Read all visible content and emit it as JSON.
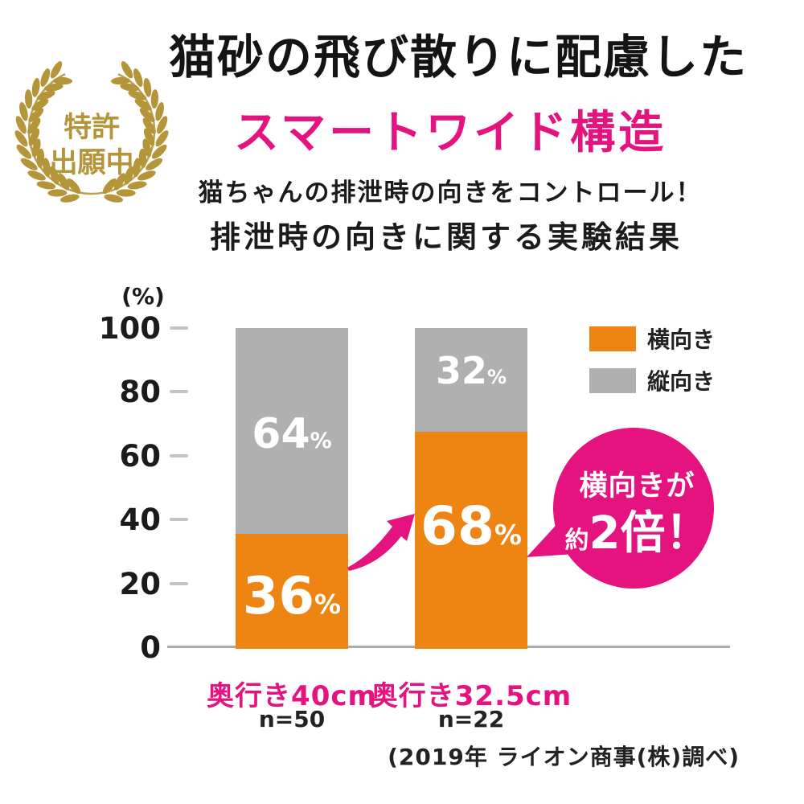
{
  "badge": {
    "line1": "特許",
    "line2": "出願中"
  },
  "heading": {
    "title": "猫砂の飛び散りに配慮した",
    "subtitle": "スマートワイド構造",
    "lead1": "猫ちゃんの排泄時の向きをコントロール！",
    "lead2": "排泄時の向きに関する実験結果"
  },
  "chart_data": {
    "type": "bar",
    "stacked": true,
    "title": "排泄時の向きに関する実験結果",
    "unit_label": "(%)",
    "ylabel": "%",
    "ylim": [
      0,
      100
    ],
    "y_ticks": [
      0,
      20,
      40,
      60,
      80,
      100
    ],
    "grid": false,
    "legend_position": "top-right",
    "categories": [
      "奥行き40cm",
      "奥行き32.5cm"
    ],
    "sample_sizes": [
      "n=50",
      "n=22"
    ],
    "series": [
      {
        "name": "横向き",
        "color": "#EE8412",
        "values": [
          36,
          68
        ]
      },
      {
        "name": "縦向き",
        "color": "#B0B0B0",
        "values": [
          64,
          32
        ]
      }
    ],
    "value_suffix": "%"
  },
  "callout": {
    "line1": "横向きが",
    "line2_small": "約",
    "line2_big": "2倍！"
  },
  "source": "(2019年 ライオン商事(株)調べ)",
  "colors": {
    "accent_pink": "#E4137F",
    "orange": "#EE8412",
    "gray": "#B0B0B0",
    "gold": "#B5953A",
    "axis": "#ABABAB"
  }
}
